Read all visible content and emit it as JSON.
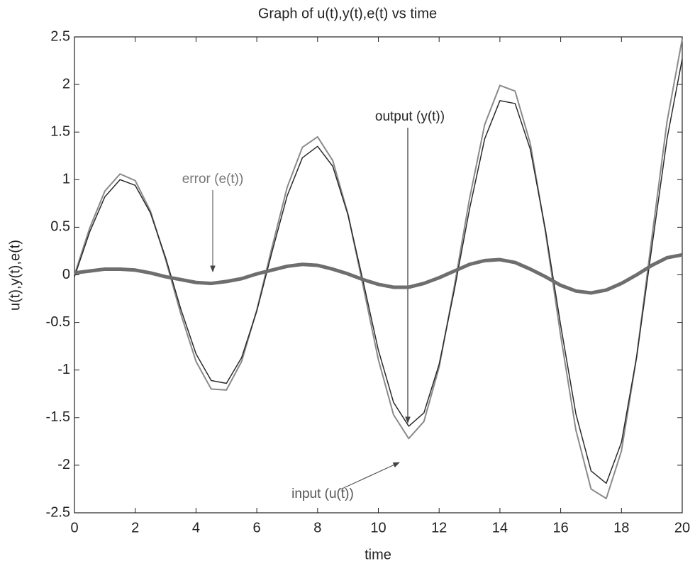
{
  "chart_data": {
    "type": "line",
    "title": "Graph of u(t),y(t),e(t) vs time",
    "x_label": "time",
    "y_label": "u(t),y(t),e(t)",
    "x": [
      0,
      0.5,
      1,
      1.5,
      2,
      2.5,
      3,
      3.5,
      4,
      4.5,
      5,
      5.5,
      6,
      6.5,
      7,
      7.5,
      8,
      8.5,
      9,
      9.5,
      10,
      10.5,
      11,
      11.5,
      12,
      12.5,
      13,
      13.5,
      14,
      14.5,
      15,
      15.5,
      16,
      16.5,
      17,
      17.5,
      18,
      18.5,
      19,
      19.5,
      20
    ],
    "series": [
      {
        "name": "input (u(t))",
        "color": "#8a8a8a",
        "width": 2,
        "values": [
          0,
          0.49,
          0.88,
          1.06,
          0.99,
          0.67,
          0.16,
          -0.41,
          -0.91,
          -1.2,
          -1.21,
          -0.91,
          -0.37,
          0.29,
          0.92,
          1.34,
          1.45,
          1.2,
          0.64,
          -0.12,
          -0.89,
          -1.47,
          -1.72,
          -1.54,
          -0.97,
          -0.12,
          0.8,
          1.58,
          1.99,
          1.93,
          1.38,
          0.45,
          -0.64,
          -1.63,
          -2.25,
          -2.35,
          -1.85,
          -0.86,
          0.39,
          1.61,
          2.48
        ]
      },
      {
        "name": "output (y(t))",
        "color": "#2a2a2a",
        "width": 1.5,
        "values": [
          -0.02,
          0.45,
          0.82,
          1,
          0.94,
          0.65,
          0.18,
          -0.36,
          -0.83,
          -1.11,
          -1.14,
          -0.87,
          -0.38,
          0.24,
          0.83,
          1.23,
          1.35,
          1.14,
          0.63,
          -0.07,
          -0.79,
          -1.34,
          -1.59,
          -1.45,
          -0.94,
          -0.16,
          0.69,
          1.43,
          1.83,
          1.8,
          1.32,
          0.47,
          -0.53,
          -1.46,
          -2.06,
          -2.19,
          -1.76,
          -0.86,
          0.29,
          1.43,
          2.27
        ]
      },
      {
        "name": "error (e(t))",
        "color": "#6e6e6e",
        "width": 5,
        "values": [
          0.02,
          0.04,
          0.06,
          0.06,
          0.05,
          0.02,
          -0.02,
          -0.05,
          -0.08,
          -0.09,
          -0.07,
          -0.04,
          0.01,
          0.05,
          0.09,
          0.11,
          0.1,
          0.06,
          0.01,
          -0.05,
          -0.1,
          -0.13,
          -0.13,
          -0.09,
          -0.03,
          0.04,
          0.11,
          0.15,
          0.16,
          0.13,
          0.06,
          -0.02,
          -0.11,
          -0.17,
          -0.19,
          -0.16,
          -0.09,
          0,
          0.1,
          0.18,
          0.21
        ]
      }
    ],
    "xlim": [
      0,
      20
    ],
    "xticks": [
      0,
      2,
      4,
      6,
      8,
      10,
      12,
      14,
      16,
      18,
      20
    ],
    "ylim": [
      -2.5,
      2.5
    ],
    "yticks": [
      -2.5,
      -2,
      -1.5,
      -1,
      -0.5,
      0,
      0.5,
      1,
      1.5,
      2,
      2.5
    ],
    "grid": false
  }
}
